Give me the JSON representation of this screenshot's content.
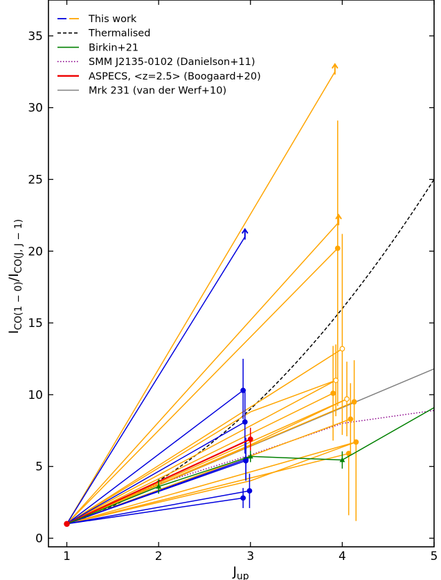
{
  "chart_data": {
    "type": "line",
    "xlabel_main": "J",
    "xlabel_sub": "up",
    "ylabel_main": "I",
    "ylabel_sub1": "CO(1 − 0)",
    "ylabel_mid": "/I",
    "ylabel_sub2": "CO(J, J − 1)",
    "xlim": [
      0.8,
      5.0
    ],
    "ylim": [
      -0.6,
      37.5
    ],
    "xticks": [
      1,
      2,
      3,
      4,
      5
    ],
    "yticks": [
      0,
      5,
      10,
      15,
      20,
      25,
      30,
      35
    ],
    "grid": false,
    "legend_position": "top-left",
    "legend": [
      {
        "label": "This work",
        "style": "dual",
        "colors": [
          "#0000dd",
          "#ffa500"
        ]
      },
      {
        "label": "Thermalised",
        "style": "dashed",
        "color": "#000000"
      },
      {
        "label": "Birkin+21",
        "style": "solid",
        "color": "#008000"
      },
      {
        "label": "SMM J2135-0102 (Danielson+11)",
        "style": "dotted",
        "color": "#8b008b"
      },
      {
        "label": "ASPECS, <z=2.5> (Boogaard+20)",
        "style": "solid-thick",
        "color": "#ee0000"
      },
      {
        "label": "Mrk 231 (van der Werf+10)",
        "style": "solid",
        "color": "#808080"
      }
    ],
    "thermalised_curve": {
      "color": "#000000",
      "x_from": 1,
      "x_to": 5
    },
    "mrk231": {
      "color": "#808080",
      "x": [
        1,
        5
      ],
      "y": [
        1,
        11.8
      ]
    },
    "smm": {
      "color": "#8b008b",
      "x": [
        1,
        2,
        3,
        4,
        5
      ],
      "y": [
        1,
        3.8,
        5.8,
        8.0,
        8.9
      ]
    },
    "birkin": {
      "color": "#008000",
      "x": [
        1,
        2,
        3,
        4,
        5
      ],
      "y": [
        1,
        3.6,
        5.7,
        5.45,
        9.1
      ],
      "err": [
        0,
        0.5,
        0.4,
        0.6,
        0
      ]
    },
    "aspecs": {
      "color": "#ee0000",
      "x": [
        1,
        3
      ],
      "y": [
        1,
        6.9
      ],
      "err": [
        0,
        0.8
      ]
    },
    "blue_color": "#0000dd",
    "orange_color": "#ffa500",
    "blue_sources": [
      {
        "x": 2.92,
        "y": 10.3,
        "elo": 2.0,
        "ehi": 2.2
      },
      {
        "x": 2.94,
        "y": 8.1,
        "elo": 2.2,
        "ehi": 2.2
      },
      {
        "x": 2.95,
        "y": 5.5,
        "elo": 1.5,
        "ehi": 1.5
      },
      {
        "x": 2.95,
        "y": 5.4,
        "elo": 1.3,
        "ehi": 1.3
      },
      {
        "x": 2.99,
        "y": 3.3,
        "elo": 1.2,
        "ehi": 1.2
      },
      {
        "x": 2.92,
        "y": 2.8,
        "elo": 0.7,
        "ehi": 0.7
      }
    ],
    "blue_limits": [
      {
        "x": 2.94,
        "y": 21.0
      }
    ],
    "orange_sources": [
      {
        "x": 3.95,
        "y": 20.2,
        "elo": 11.0,
        "ehi": 8.9,
        "open": false
      },
      {
        "x": 4.0,
        "y": 13.2,
        "elo": 6.0,
        "ehi": 8.0,
        "open": true
      },
      {
        "x": 3.93,
        "y": 11.0,
        "elo": 2.5,
        "ehi": 2.5,
        "open": true
      },
      {
        "x": 3.9,
        "y": 10.1,
        "elo": 3.3,
        "ehi": 3.3,
        "open": false
      },
      {
        "x": 4.05,
        "y": 9.7,
        "elo": 2.6,
        "ehi": 2.6,
        "open": true
      },
      {
        "x": 4.13,
        "y": 9.5,
        "elo": 2.9,
        "ehi": 2.9,
        "open": false
      },
      {
        "x": 4.09,
        "y": 8.3,
        "elo": 2.5,
        "ehi": 2.5,
        "open": false
      },
      {
        "x": 4.15,
        "y": 6.7,
        "elo": 5.5,
        "ehi": 0.0,
        "open": false
      },
      {
        "x": 4.07,
        "y": 5.9,
        "elo": 4.3,
        "ehi": 0.0,
        "open": false
      }
    ],
    "orange_mid_ends": [
      {
        "x": 3.0,
        "y": 8.8
      },
      {
        "x": 3.0,
        "y": 6.5
      },
      {
        "x": 3.0,
        "y": 4.0
      }
    ],
    "orange_limits": [
      {
        "x": 3.92,
        "y": 32.5
      },
      {
        "x": 3.96,
        "y": 22.0
      }
    ]
  }
}
